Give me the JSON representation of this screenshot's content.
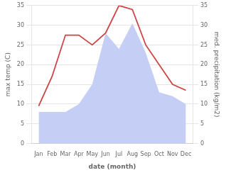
{
  "chart_data": {
    "type": "line",
    "categories": [
      "Jan",
      "Feb",
      "Mar",
      "Apr",
      "May",
      "Jun",
      "Jul",
      "Aug",
      "Sep",
      "Oct",
      "Nov",
      "Dec"
    ],
    "series": [
      {
        "type": "area",
        "color": "#c5cff5",
        "values": [
          8,
          8,
          8,
          10,
          15,
          28,
          24,
          30.5,
          23,
          13,
          12,
          10
        ]
      },
      {
        "type": "line",
        "color": "#cc4444",
        "values": [
          9.5,
          17,
          27.5,
          27.5,
          25,
          28,
          35,
          34,
          25,
          20,
          15,
          13.5
        ]
      }
    ],
    "xlabel": "date (month)",
    "ylabel": "max temp (C)",
    "y2label": "med. precipitation (kg/m2)",
    "ylim": [
      0,
      35
    ],
    "yticks": [
      0,
      5,
      10,
      15,
      20,
      25,
      30,
      35
    ],
    "y2lim": [
      0,
      35
    ],
    "y2ticks": [
      0,
      5,
      10,
      15,
      20,
      25,
      30,
      35
    ],
    "grid": "y"
  }
}
